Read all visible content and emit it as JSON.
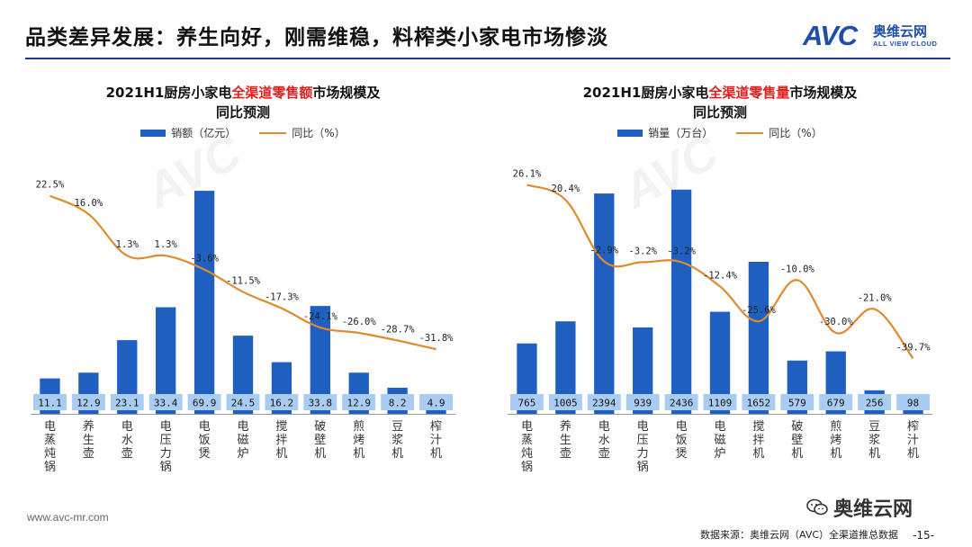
{
  "header": {
    "title": "品类差异发展：养生向好，刚需维稳，料榨类小家电市场惨淡",
    "logo_mark": "AVC",
    "logo_cn": "奥维云网",
    "logo_en": "ALL VIEW CLOUD"
  },
  "colors": {
    "bar": "#1f5fbf",
    "line": "#e08a2e",
    "value_box": "#a9cdf2",
    "highlight": "#e3201b",
    "header_line": "#1a3d8f"
  },
  "chart_data": [
    {
      "type": "bar",
      "title_prefix": "2021H1厨房小家电",
      "title_highlight": "全渠道零售额",
      "title_suffix": "市场规模及",
      "title_line2": "同比预测",
      "categories": [
        "电蒸炖锅",
        "养生壶",
        "电水壶",
        "电压力锅",
        "电饭煲",
        "电磁炉",
        "搅拌机",
        "破壁机",
        "煎烤机",
        "豆浆机",
        "榨汁机"
      ],
      "series": [
        {
          "name": "销额（亿元）",
          "type": "bar",
          "values": [
            11.1,
            12.9,
            23.1,
            33.4,
            69.9,
            24.5,
            16.2,
            33.8,
            12.9,
            8.2,
            4.9
          ]
        },
        {
          "name": "同比（%）",
          "type": "line",
          "values": [
            22.5,
            16.0,
            1.3,
            1.3,
            -3.6,
            -11.5,
            -17.3,
            -24.1,
            -26.0,
            -28.7,
            -31.8
          ]
        }
      ],
      "value_labels": [
        "11.1",
        "12.9",
        "23.1",
        "33.4",
        "69.9",
        "24.5",
        "16.2",
        "33.8",
        "12.9",
        "8.2",
        "4.9"
      ],
      "line_labels": [
        "22.5%",
        "16.0%",
        "1.3%",
        "1.3%",
        "-3.6%",
        "-11.5%",
        "-17.3%",
        "-24.1%",
        "-26.0%",
        "-28.7%",
        "-31.8%"
      ],
      "bar_ylim": [
        0,
        75
      ],
      "line_ylim": [
        -40,
        30
      ],
      "legend": [
        "销额（亿元）",
        "同比（%）"
      ],
      "legend_position": "top-center"
    },
    {
      "type": "bar",
      "title_prefix": "2021H1厨房小家电",
      "title_highlight": "全渠道零售量",
      "title_suffix": "市场规模及",
      "title_line2": "同比预测",
      "categories": [
        "电蒸炖锅",
        "养生壶",
        "电水壶",
        "电压力锅",
        "电饭煲",
        "电磁炉",
        "搅拌机",
        "破壁机",
        "煎烤机",
        "豆浆机",
        "榨汁机"
      ],
      "series": [
        {
          "name": "销量（万台）",
          "type": "bar",
          "values": [
            765,
            1005,
            2394,
            939,
            2436,
            1109,
            1652,
            579,
            679,
            256,
            98
          ]
        },
        {
          "name": "同比（%）",
          "type": "line",
          "values": [
            26.1,
            20.4,
            -2.9,
            -3.2,
            -3.2,
            -12.4,
            -25.6,
            -10.0,
            -30.0,
            -21.0,
            -39.7
          ]
        }
      ],
      "value_labels": [
        "765",
        "1005",
        "2394",
        "939",
        "2436",
        "1109",
        "1652",
        "579",
        "679",
        "256",
        "98"
      ],
      "line_labels": [
        "26.1%",
        "20.4%",
        "-2.9%",
        "-3.2%",
        "-3.2%",
        "-12.4%",
        "-25.6%",
        "-10.0%",
        "-30.0%",
        "-21.0%",
        "-39.7%"
      ],
      "bar_ylim": [
        0,
        2600
      ],
      "line_ylim": [
        -45,
        30
      ],
      "legend": [
        "销量（万台）",
        "同比（%）"
      ],
      "legend_position": "top-center"
    }
  ],
  "footer": {
    "url": "www.avc-mr.com",
    "source": "数据来源：奥维云网（AVC）全渠道推总数据",
    "page": "-15-",
    "wechat_label": "奥维云网"
  }
}
